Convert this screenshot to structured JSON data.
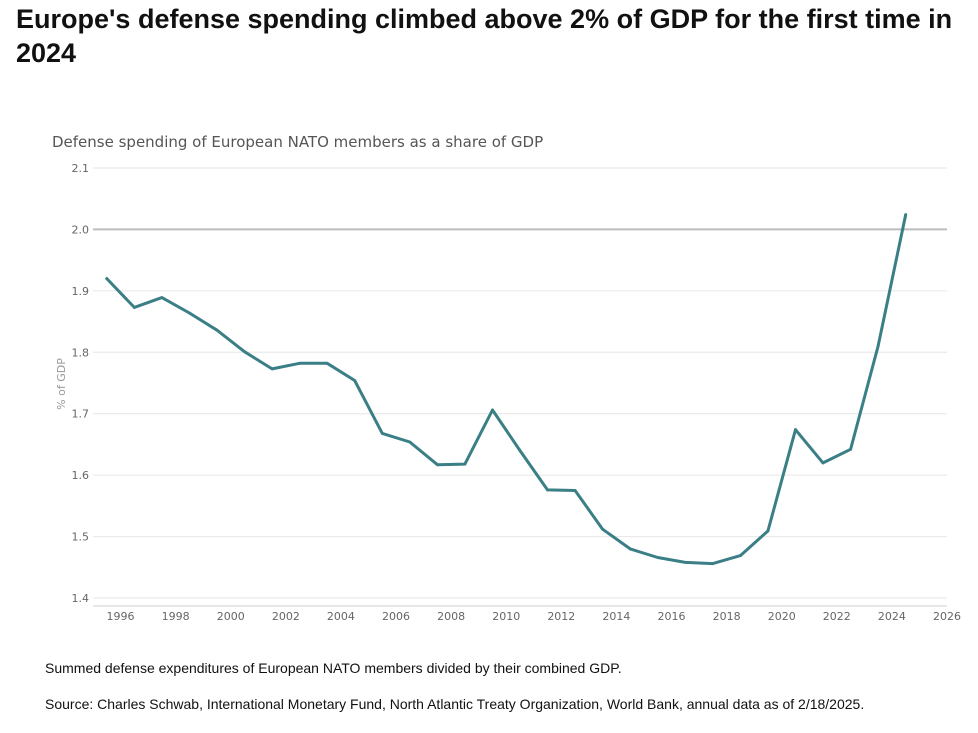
{
  "headline": "Europe's defense spending climbed above 2% of GDP for the first time in 2024",
  "footnote": "Summed defense expenditures of European NATO members divided by their combined GDP.",
  "source": "Source: Charles Schwab, International Monetary Fund, North Atlantic Treaty Organization, World Bank, annual data as of 2/18/2025.",
  "colors": {
    "line": "#3a7f86",
    "grid": "#e6e6e6",
    "reference_line": "#bdbdbd",
    "axis_text": "#666666",
    "ylabel_text": "#999999"
  },
  "chart_data": {
    "type": "line",
    "title": "Defense spending of European NATO members as a share of GDP",
    "xlabel": "",
    "ylabel": "% of GDP",
    "xlim": [
      1995,
      2026
    ],
    "ylim": [
      1.4,
      2.1
    ],
    "xticks": [
      1996,
      1998,
      2000,
      2002,
      2004,
      2006,
      2008,
      2010,
      2012,
      2014,
      2016,
      2018,
      2020,
      2022,
      2024,
      2026
    ],
    "yticks": [
      1.4,
      1.5,
      1.6,
      1.7,
      1.8,
      1.9,
      2.0,
      2.1
    ],
    "reference_line": 2.0,
    "grid": true,
    "legend": "none",
    "series": [
      {
        "x": [
          1995.5,
          1996.5,
          1997.5,
          1998.5,
          1999.5,
          2000.5,
          2001.5,
          2002.5,
          2003.5,
          2004.5,
          2005.5,
          2006.5,
          2007.5,
          2008.5,
          2009.5,
          2010.5,
          2011.5,
          2012.5,
          2013.5,
          2014.5,
          2015.5,
          2016.5,
          2017.5,
          2018.5,
          2019.5,
          2020.5,
          2021.5,
          2022.5,
          2023.5,
          2024.5
        ],
        "values": [
          1.92,
          1.873,
          1.889,
          1.864,
          1.836,
          1.801,
          1.773,
          1.782,
          1.782,
          1.754,
          1.668,
          1.654,
          1.617,
          1.618,
          1.706,
          1.64,
          1.576,
          1.575,
          1.512,
          1.48,
          1.466,
          1.458,
          1.456,
          1.469,
          1.509,
          1.674,
          1.62,
          1.642,
          1.81,
          2.024
        ]
      }
    ]
  }
}
